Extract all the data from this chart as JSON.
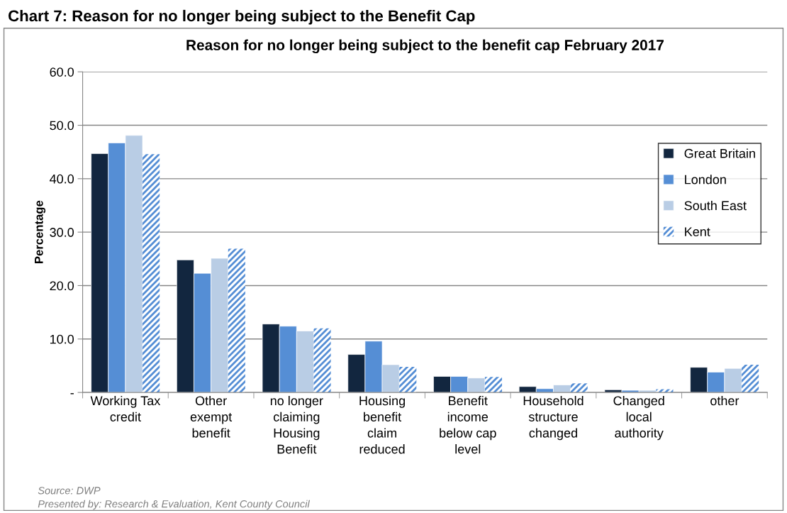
{
  "chart_data": {
    "type": "bar",
    "title": "Reason for no longer being subject to the benefit cap February 2017",
    "ylabel": "Percentage",
    "categories": [
      "Working Tax credit",
      "Other exempt benefit",
      "no longer claiming Housing Benefit",
      "Housing benefit claim reduced",
      "Benefit income below cap level",
      "Household structure changed",
      "Changed local authority",
      "other"
    ],
    "series": [
      {
        "name": "Great Britain",
        "color": "#12263f",
        "values": [
          44.7,
          24.8,
          12.8,
          7.1,
          3.0,
          1.1,
          0.5,
          4.7
        ]
      },
      {
        "name": "London",
        "color": "#558ed5",
        "values": [
          46.7,
          22.3,
          12.4,
          9.6,
          3.0,
          0.7,
          0.4,
          3.8
        ]
      },
      {
        "name": "South East",
        "color": "#b9cde5",
        "values": [
          48.1,
          25.1,
          11.5,
          5.2,
          2.7,
          1.4,
          0.4,
          4.5
        ]
      },
      {
        "name": "Kent",
        "color": "#558ed5",
        "values": [
          44.6,
          26.9,
          12.0,
          4.8,
          2.9,
          1.7,
          0.6,
          5.2
        ]
      }
    ],
    "ylim": [
      0,
      60
    ],
    "yticks": [
      {
        "value": 0,
        "label": "-"
      },
      {
        "value": 10,
        "label": "10.0"
      },
      {
        "value": 20,
        "label": "20.0"
      },
      {
        "value": 30,
        "label": "30.0"
      },
      {
        "value": 40,
        "label": "40.0"
      },
      {
        "value": 50,
        "label": "50.0"
      },
      {
        "value": 60,
        "label": "60.0"
      }
    ],
    "grid": "y",
    "legend": "right",
    "annotations": [
      "Chart 7: Reason for no longer being subject to the Benefit Cap",
      "Source: DWP",
      "Presented by: Research & Evaluation, Kent County Council"
    ]
  }
}
